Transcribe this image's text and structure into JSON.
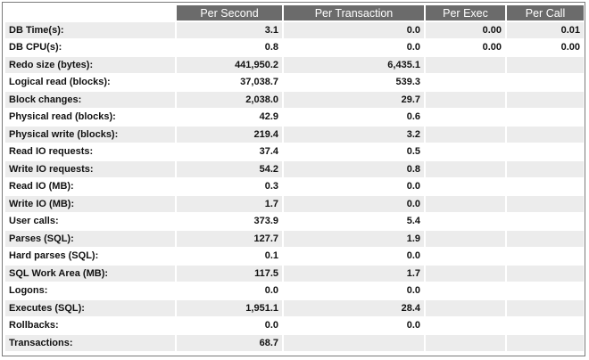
{
  "table": {
    "columns": [
      null,
      "Per Second",
      "Per Transaction",
      "Per Exec",
      "Per Call"
    ],
    "rows": [
      [
        "DB Time(s):",
        "3.1",
        "0.0",
        "0.00",
        "0.01"
      ],
      [
        "DB CPU(s):",
        "0.8",
        "0.0",
        "0.00",
        "0.00"
      ],
      [
        "Redo size (bytes):",
        "441,950.2",
        "6,435.1",
        null,
        null
      ],
      [
        "Logical read (blocks):",
        "37,038.7",
        "539.3",
        null,
        null
      ],
      [
        "Block changes:",
        "2,038.0",
        "29.7",
        null,
        null
      ],
      [
        "Physical read (blocks):",
        "42.9",
        "0.6",
        null,
        null
      ],
      [
        "Physical write (blocks):",
        "219.4",
        "3.2",
        null,
        null
      ],
      [
        "Read IO requests:",
        "37.4",
        "0.5",
        null,
        null
      ],
      [
        "Write IO requests:",
        "54.2",
        "0.8",
        null,
        null
      ],
      [
        "Read IO (MB):",
        "0.3",
        "0.0",
        null,
        null
      ],
      [
        "Write IO (MB):",
        "1.7",
        "0.0",
        null,
        null
      ],
      [
        "User calls:",
        "373.9",
        "5.4",
        null,
        null
      ],
      [
        "Parses (SQL):",
        "127.7",
        "1.9",
        null,
        null
      ],
      [
        "Hard parses (SQL):",
        "0.1",
        "0.0",
        null,
        null
      ],
      [
        "SQL Work Area (MB):",
        "117.5",
        "1.7",
        null,
        null
      ],
      [
        "Logons:",
        "0.0",
        "0.0",
        null,
        null
      ],
      [
        "Executes (SQL):",
        "1,951.1",
        "28.4",
        null,
        null
      ],
      [
        "Rollbacks:",
        "0.0",
        "0.0",
        null,
        null
      ],
      [
        "Transactions:",
        "68.7",
        null,
        null,
        null
      ]
    ]
  }
}
